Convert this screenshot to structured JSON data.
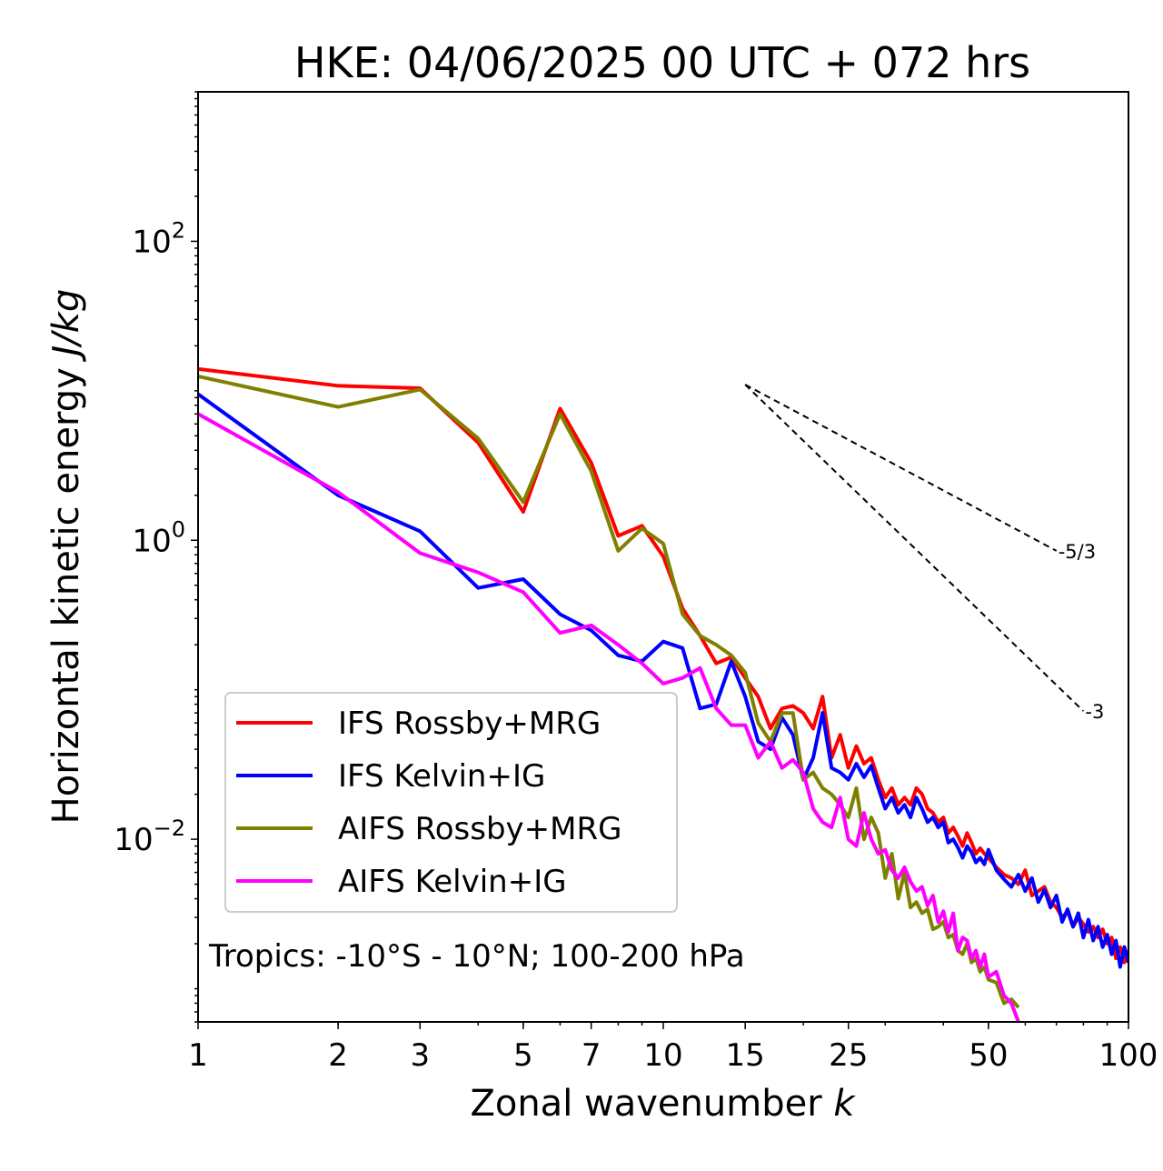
{
  "chart_data": {
    "type": "line",
    "title": "HKE: 04/06/2025 00 UTC + 072 hrs",
    "xlabel_prefix": "Zonal wavenumber ",
    "xlabel_var": "k",
    "ylabel_prefix": "Horizontal kinetic energy ",
    "ylabel_unit": "J/kg",
    "xscale": "log",
    "yscale": "log",
    "xlim": [
      1,
      100
    ],
    "ylim": [
      0.0006,
      1000
    ],
    "grid": false,
    "legend_position": "lower-left",
    "x_ticks": [
      {
        "value": 1,
        "label": "1"
      },
      {
        "value": 2,
        "label": "2"
      },
      {
        "value": 3,
        "label": "3"
      },
      {
        "value": 5,
        "label": "5"
      },
      {
        "value": 7,
        "label": "7"
      },
      {
        "value": 10,
        "label": "10"
      },
      {
        "value": 15,
        "label": "15"
      },
      {
        "value": 25,
        "label": "25"
      },
      {
        "value": 50,
        "label": "50"
      },
      {
        "value": 100,
        "label": "100"
      }
    ],
    "y_ticks": [
      {
        "value": 100,
        "base": "10",
        "exp": "2"
      },
      {
        "value": 1,
        "base": "10",
        "exp": "0"
      },
      {
        "value": 0.01,
        "base": "10",
        "exp": "−2"
      }
    ],
    "annotation": "Tropics: -10°S - 10°N; 100-200 hPa",
    "reference_slopes": [
      {
        "label": "-5/3",
        "x": [
          15,
          70
        ],
        "y": [
          11,
          0.85
        ]
      },
      {
        "label": "-3",
        "x": [
          15,
          80
        ],
        "y": [
          11,
          0.072
        ]
      }
    ],
    "series": [
      {
        "name": "IFS Rossby+MRG",
        "color": "#ff0000",
        "x": [
          1,
          2,
          3,
          4,
          5,
          6,
          7,
          8,
          9,
          10,
          11,
          12,
          13,
          14,
          15,
          16,
          17,
          18,
          19,
          20,
          21,
          22,
          23,
          24,
          25,
          26,
          27,
          28,
          29,
          30,
          31,
          32,
          33,
          34,
          35,
          36,
          37,
          38,
          39,
          40,
          41,
          42,
          43,
          44,
          45,
          46,
          47,
          48,
          49,
          50,
          52,
          54,
          56,
          58,
          60,
          62,
          64,
          66,
          68,
          70,
          72,
          74,
          76,
          78,
          80,
          82,
          84,
          86,
          88,
          90,
          92,
          94,
          96,
          98,
          100
        ],
        "y": [
          14,
          10.8,
          10.4,
          4.5,
          1.55,
          7.6,
          3.3,
          1.07,
          1.25,
          0.78,
          0.35,
          0.23,
          0.15,
          0.165,
          0.12,
          0.09,
          0.055,
          0.075,
          0.078,
          0.07,
          0.055,
          0.09,
          0.035,
          0.05,
          0.03,
          0.042,
          0.032,
          0.035,
          0.025,
          0.019,
          0.022,
          0.017,
          0.019,
          0.017,
          0.022,
          0.02,
          0.016,
          0.015,
          0.013,
          0.014,
          0.011,
          0.012,
          0.0105,
          0.009,
          0.011,
          0.0095,
          0.008,
          0.0087,
          0.008,
          0.0075,
          0.0065,
          0.0058,
          0.0055,
          0.005,
          0.0062,
          0.0042,
          0.0045,
          0.0048,
          0.0038,
          0.0035,
          0.003,
          0.0033,
          0.0026,
          0.003,
          0.0027,
          0.0024,
          0.0026,
          0.0022,
          0.0025,
          0.002,
          0.0022,
          0.0016,
          0.0019,
          0.0015,
          0.0018
        ]
      },
      {
        "name": "IFS Kelvin+IG",
        "color": "#0000ff",
        "x": [
          1,
          2,
          3,
          4,
          5,
          6,
          7,
          8,
          9,
          10,
          11,
          12,
          13,
          14,
          15,
          16,
          17,
          18,
          19,
          20,
          21,
          22,
          23,
          24,
          25,
          26,
          27,
          28,
          29,
          30,
          31,
          32,
          33,
          34,
          35,
          36,
          37,
          38,
          39,
          40,
          41,
          42,
          43,
          44,
          45,
          46,
          47,
          48,
          49,
          50,
          52,
          54,
          56,
          58,
          60,
          62,
          64,
          66,
          68,
          70,
          72,
          74,
          76,
          78,
          80,
          82,
          84,
          86,
          88,
          90,
          92,
          94,
          96,
          98,
          100
        ],
        "y": [
          9.5,
          2.0,
          1.15,
          0.48,
          0.55,
          0.32,
          0.25,
          0.17,
          0.155,
          0.21,
          0.19,
          0.075,
          0.08,
          0.155,
          0.09,
          0.045,
          0.04,
          0.065,
          0.05,
          0.025,
          0.035,
          0.07,
          0.03,
          0.028,
          0.025,
          0.032,
          0.026,
          0.031,
          0.022,
          0.016,
          0.019,
          0.015,
          0.017,
          0.014,
          0.019,
          0.016,
          0.013,
          0.014,
          0.012,
          0.013,
          0.0095,
          0.01,
          0.0088,
          0.0075,
          0.009,
          0.0082,
          0.007,
          0.0075,
          0.0068,
          0.0085,
          0.0062,
          0.0054,
          0.0048,
          0.0058,
          0.0045,
          0.0055,
          0.0038,
          0.0046,
          0.0035,
          0.0042,
          0.0028,
          0.0034,
          0.0026,
          0.0032,
          0.0022,
          0.0029,
          0.0021,
          0.0026,
          0.0019,
          0.0023,
          0.0017,
          0.0021,
          0.0014,
          0.0019,
          0.0015
        ]
      },
      {
        "name": "AIFS Rossby+MRG",
        "color": "#808000",
        "x": [
          1,
          2,
          3,
          4,
          5,
          6,
          7,
          8,
          9,
          10,
          11,
          12,
          13,
          14,
          15,
          16,
          17,
          18,
          19,
          20,
          21,
          22,
          23,
          24,
          25,
          26,
          27,
          28,
          29,
          30,
          31,
          32,
          33,
          34,
          35,
          36,
          37,
          38,
          39,
          40,
          41,
          42,
          43,
          44,
          45,
          46,
          47,
          48,
          49,
          50,
          52,
          54,
          56,
          58
        ],
        "y": [
          12.5,
          7.8,
          10.2,
          4.8,
          1.8,
          7.0,
          2.9,
          0.85,
          1.2,
          0.95,
          0.32,
          0.23,
          0.2,
          0.17,
          0.13,
          0.06,
          0.045,
          0.07,
          0.07,
          0.025,
          0.028,
          0.022,
          0.02,
          0.017,
          0.014,
          0.022,
          0.01,
          0.014,
          0.011,
          0.0055,
          0.008,
          0.004,
          0.006,
          0.0035,
          0.0038,
          0.0032,
          0.0034,
          0.0025,
          0.0026,
          0.0028,
          0.0022,
          0.0023,
          0.0018,
          0.0017,
          0.002,
          0.0015,
          0.0016,
          0.0013,
          0.0014,
          0.00115,
          0.0011,
          0.0008,
          0.00085,
          0.00075
        ]
      },
      {
        "name": "AIFS Kelvin+IG",
        "color": "#ff00ff",
        "x": [
          1,
          2,
          3,
          4,
          5,
          6,
          7,
          8,
          9,
          10,
          11,
          12,
          13,
          14,
          15,
          16,
          17,
          18,
          19,
          20,
          21,
          22,
          23,
          24,
          25,
          26,
          27,
          28,
          29,
          30,
          31,
          32,
          33,
          34,
          35,
          36,
          37,
          38,
          39,
          40,
          41,
          42,
          43,
          44,
          45,
          46,
          47,
          48,
          49,
          50,
          52,
          54,
          56,
          58
        ],
        "y": [
          7.0,
          2.1,
          0.82,
          0.61,
          0.45,
          0.24,
          0.27,
          0.2,
          0.15,
          0.11,
          0.12,
          0.14,
          0.075,
          0.058,
          0.058,
          0.035,
          0.045,
          0.03,
          0.034,
          0.028,
          0.016,
          0.013,
          0.012,
          0.019,
          0.01,
          0.009,
          0.015,
          0.01,
          0.008,
          0.0085,
          0.0062,
          0.0055,
          0.0065,
          0.0052,
          0.0045,
          0.0048,
          0.0036,
          0.0042,
          0.0028,
          0.0033,
          0.0024,
          0.0032,
          0.0018,
          0.0022,
          0.0021,
          0.0016,
          0.0018,
          0.0014,
          0.0017,
          0.0012,
          0.0013,
          0.0009,
          0.0008,
          0.0006
        ]
      }
    ]
  }
}
